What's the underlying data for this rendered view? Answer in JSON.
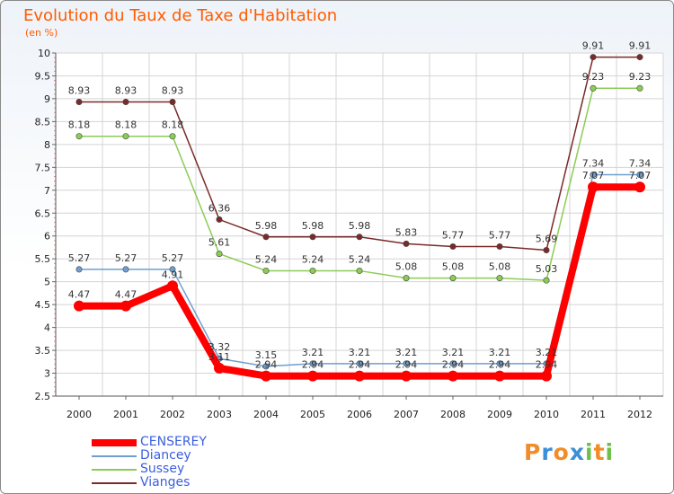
{
  "chart_data": {
    "type": "line",
    "title": "Evolution du Taux de Taxe d'Habitation",
    "subtitle": "(en %)",
    "xlabel": "",
    "ylabel": "",
    "categories": [
      "2000",
      "2001",
      "2002",
      "2003",
      "2004",
      "2005",
      "2006",
      "2007",
      "2008",
      "2009",
      "2010",
      "2011",
      "2012"
    ],
    "ylim": [
      2.5,
      10
    ],
    "yticks": [
      "2.5",
      "3",
      "3.5",
      "4",
      "4.5",
      "5",
      "5.5",
      "6",
      "6.5",
      "7",
      "7.5",
      "8",
      "8.5",
      "9",
      "9.5",
      "10"
    ],
    "grid": true,
    "legend_position": "bottom-left",
    "series": [
      {
        "name": "CENSEREY",
        "color": "#ff0000",
        "line_style": "thick",
        "values": [
          4.47,
          4.47,
          4.91,
          3.11,
          2.94,
          2.94,
          2.94,
          2.94,
          2.94,
          2.94,
          2.94,
          7.07,
          7.07
        ],
        "labels": [
          "4.47",
          "4.47",
          "4.91",
          "3.11",
          "2.94",
          "2.94",
          "2.94",
          "2.94",
          "2.94",
          "2.94",
          "2.94",
          "7.07",
          "7.07"
        ]
      },
      {
        "name": "Diancey",
        "color": "#6e9fd0",
        "line_style": "thin",
        "values": [
          5.27,
          5.27,
          5.27,
          3.32,
          3.15,
          3.21,
          3.21,
          3.21,
          3.21,
          3.21,
          3.21,
          7.34,
          7.34
        ],
        "labels": [
          "5.27",
          "5.27",
          "5.27",
          "3.32",
          "3.15",
          "3.21",
          "3.21",
          "3.21",
          "3.21",
          "3.21",
          "3.21",
          "7.34",
          "7.34"
        ]
      },
      {
        "name": "Sussey",
        "color": "#8ccc55",
        "line_style": "thin",
        "values": [
          8.18,
          8.18,
          8.18,
          5.61,
          5.24,
          5.24,
          5.24,
          5.08,
          5.08,
          5.08,
          5.03,
          9.23,
          9.23
        ],
        "labels": [
          "8.18",
          "8.18",
          "8.18",
          "5.61",
          "5.24",
          "5.24",
          "5.24",
          "5.08",
          "5.08",
          "5.08",
          "5.03",
          "9.23",
          "9.23"
        ]
      },
      {
        "name": "Vianges",
        "color": "#7a2a2a",
        "line_style": "thin",
        "values": [
          8.93,
          8.93,
          8.93,
          6.36,
          5.98,
          5.98,
          5.98,
          5.83,
          5.77,
          5.77,
          5.69,
          9.91,
          9.91
        ],
        "labels": [
          "8.93",
          "8.93",
          "8.93",
          "6.36",
          "5.98",
          "5.98",
          "5.98",
          "5.83",
          "5.77",
          "5.77",
          "5.69",
          "9.91",
          "9.91"
        ]
      }
    ]
  },
  "brand": {
    "text": "Proxiti",
    "letter_colors": [
      "#f28c28",
      "#3b8ed8",
      "#f28c28",
      "#3b8ed8",
      "#6cc04a",
      "#f28c28",
      "#6cc04a"
    ]
  }
}
